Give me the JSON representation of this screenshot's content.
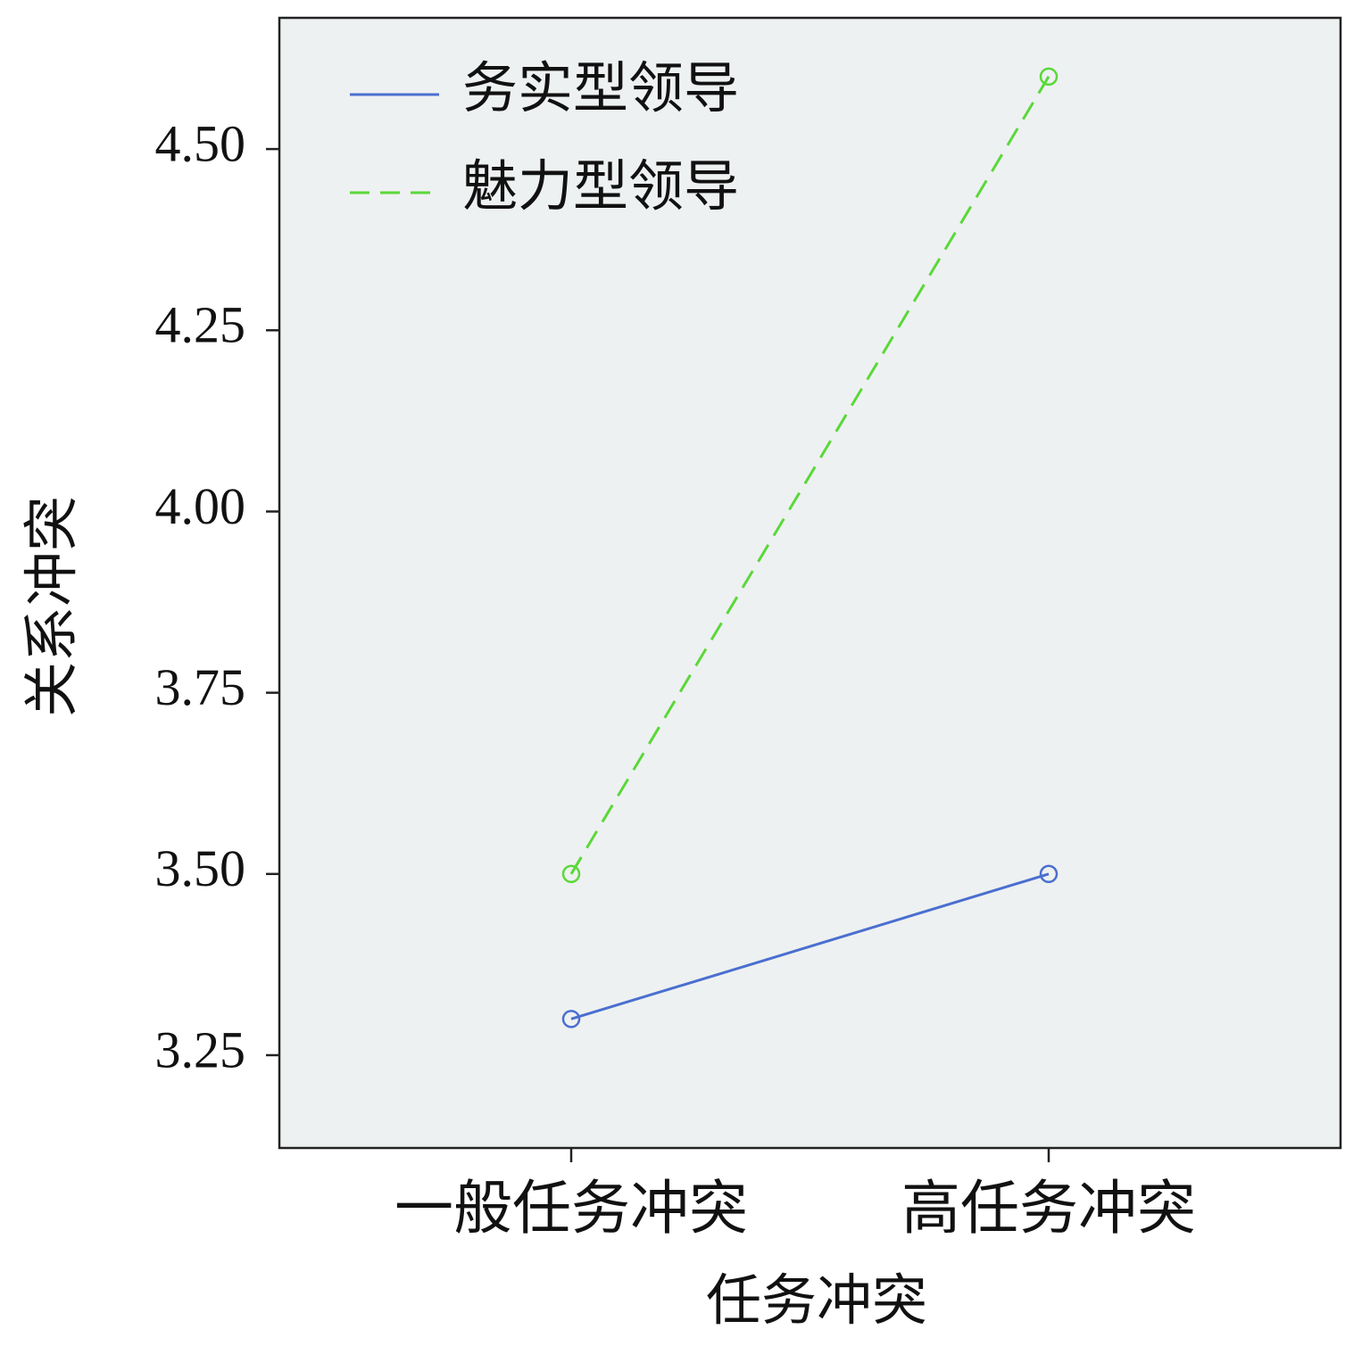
{
  "chart_data": {
    "type": "line",
    "x_label": "任务冲突",
    "y_label": "关系冲突",
    "categories": [
      "一般任务冲突",
      "高任务冲突"
    ],
    "series": [
      {
        "name": "务实型领导",
        "color": "#4a6fd0",
        "dash": "solid",
        "values": [
          3.3,
          3.5
        ]
      },
      {
        "name": "魅力型领导",
        "color": "#5ad83a",
        "dash": "dashed",
        "values": [
          3.5,
          4.6
        ]
      }
    ],
    "ylim": [
      3.122,
      4.681
    ],
    "yticks": [
      {
        "value": 3.25,
        "label": "3.25"
      },
      {
        "value": 3.5,
        "label": "3.50"
      },
      {
        "value": 3.75,
        "label": "3.75"
      },
      {
        "value": 4.0,
        "label": "4.00"
      },
      {
        "value": 4.25,
        "label": "4.25"
      },
      {
        "value": 4.5,
        "label": "4.50"
      }
    ],
    "legend": "top-left",
    "background": "#eef1f1"
  }
}
